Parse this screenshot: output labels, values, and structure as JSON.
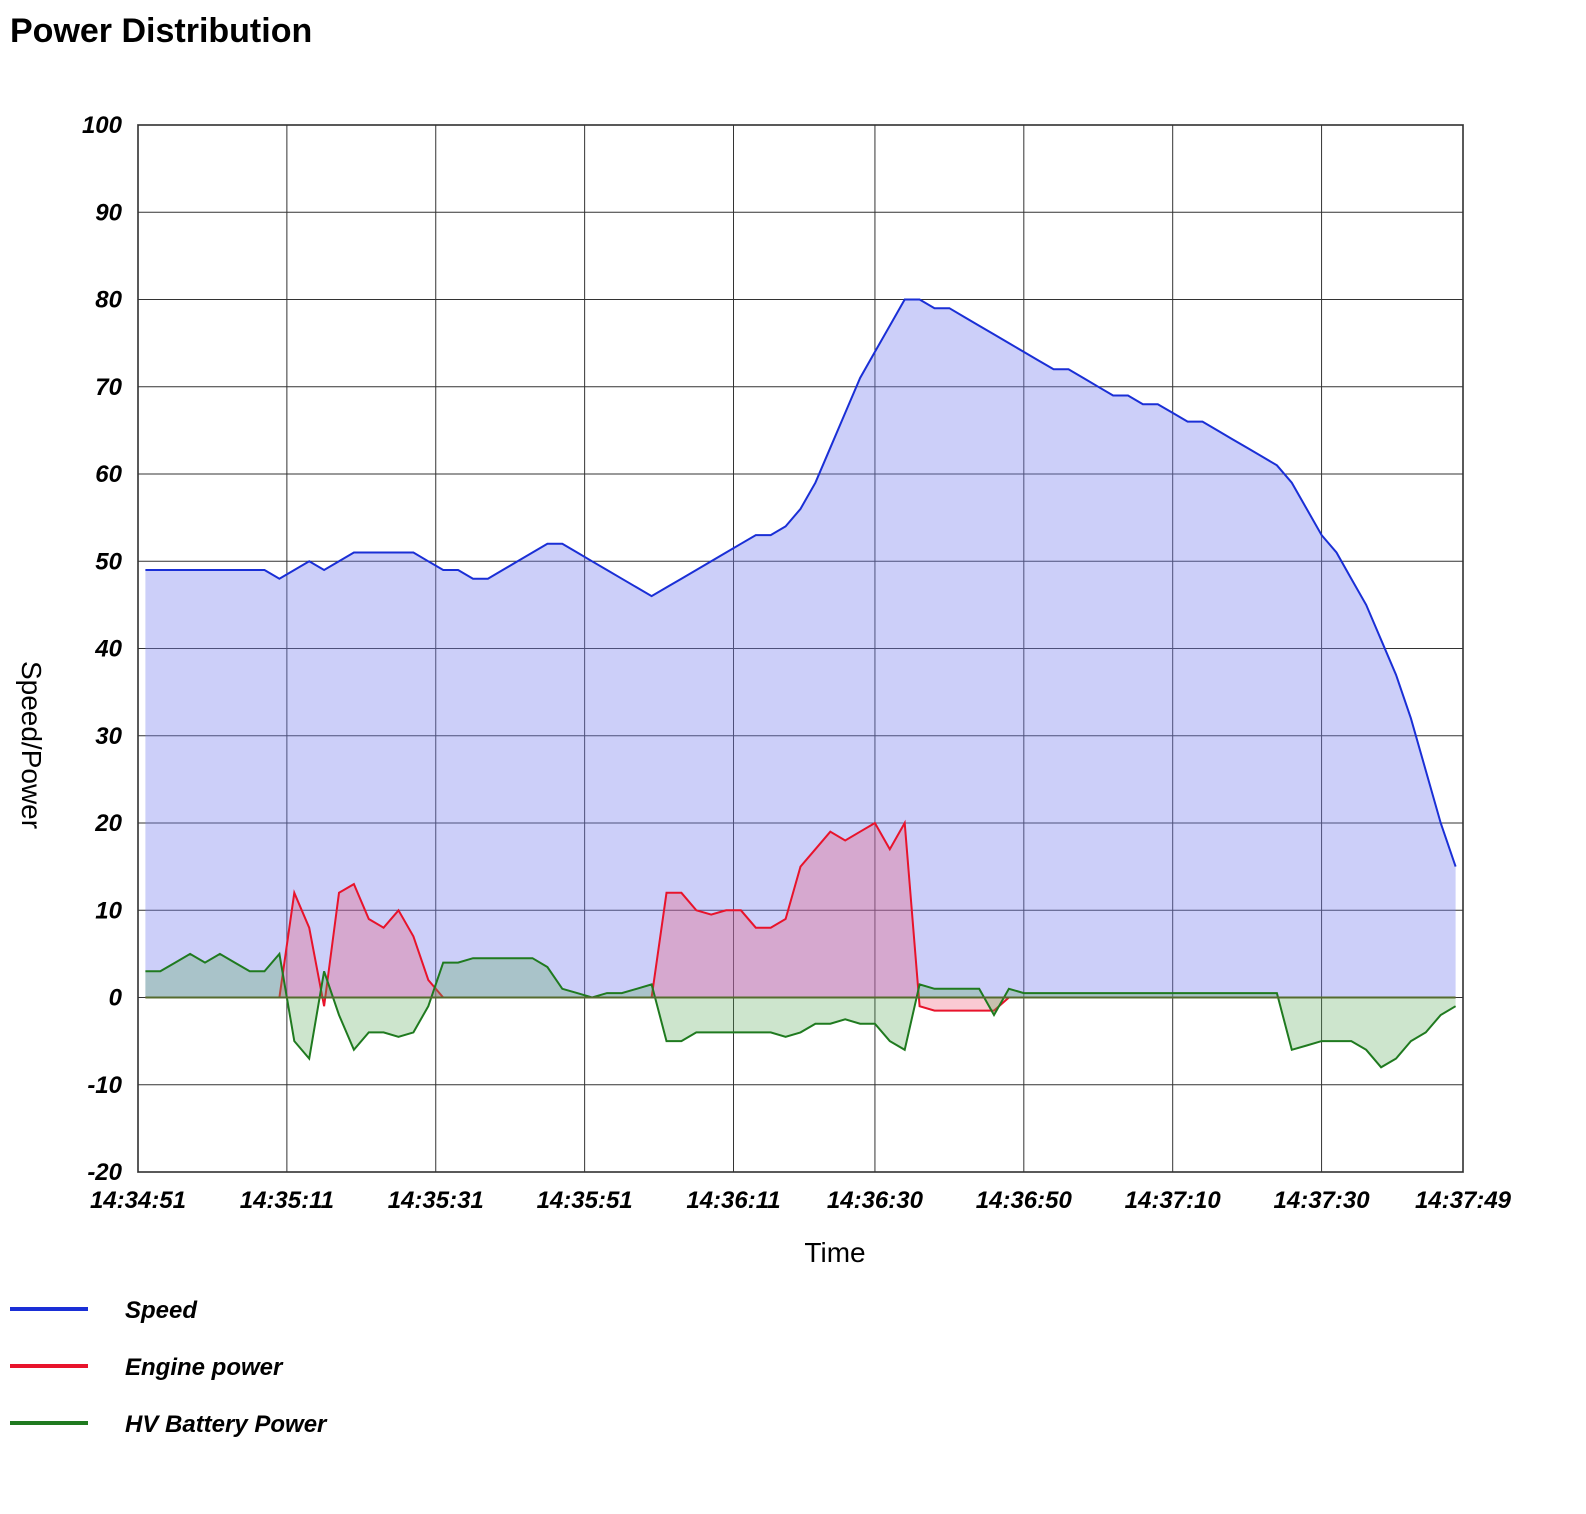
{
  "chart_data": {
    "type": "area-line",
    "title": "Power Distribution",
    "xlabel": "Time",
    "ylabel": "Speed/Power",
    "x": [
      "14:34:52",
      "14:34:54",
      "14:34:56",
      "14:34:58",
      "14:35:00",
      "14:35:02",
      "14:35:04",
      "14:35:06",
      "14:35:08",
      "14:35:10",
      "14:35:12",
      "14:35:14",
      "14:35:16",
      "14:35:18",
      "14:35:20",
      "14:35:22",
      "14:35:24",
      "14:35:26",
      "14:35:28",
      "14:35:30",
      "14:35:32",
      "14:35:34",
      "14:35:36",
      "14:35:38",
      "14:35:40",
      "14:35:42",
      "14:35:44",
      "14:35:46",
      "14:35:48",
      "14:35:50",
      "14:35:52",
      "14:35:54",
      "14:35:56",
      "14:35:58",
      "14:36:00",
      "14:36:02",
      "14:36:04",
      "14:36:06",
      "14:36:08",
      "14:36:10",
      "14:36:12",
      "14:36:14",
      "14:36:16",
      "14:36:18",
      "14:36:20",
      "14:36:22",
      "14:36:24",
      "14:36:26",
      "14:36:28",
      "14:36:30",
      "14:36:32",
      "14:36:34",
      "14:36:36",
      "14:36:38",
      "14:36:40",
      "14:36:42",
      "14:36:44",
      "14:36:46",
      "14:36:48",
      "14:36:50",
      "14:36:52",
      "14:36:54",
      "14:36:56",
      "14:36:58",
      "14:37:00",
      "14:37:02",
      "14:37:04",
      "14:37:06",
      "14:37:08",
      "14:37:10",
      "14:37:12",
      "14:37:14",
      "14:37:16",
      "14:37:18",
      "14:37:20",
      "14:37:22",
      "14:37:24",
      "14:37:26",
      "14:37:28",
      "14:37:30",
      "14:37:32",
      "14:37:34",
      "14:37:36",
      "14:37:38",
      "14:37:40",
      "14:37:42",
      "14:37:44",
      "14:37:46",
      "14:37:48"
    ],
    "series": [
      {
        "name": "Speed",
        "color": "#1a2fd6",
        "fill": "rgba(120,130,240,0.38)",
        "values": [
          49,
          49,
          49,
          49,
          49,
          49,
          49,
          49,
          49,
          48,
          49,
          50,
          49,
          50,
          51,
          51,
          51,
          51,
          51,
          50,
          49,
          49,
          48,
          48,
          49,
          50,
          51,
          52,
          52,
          51,
          50,
          49,
          48,
          47,
          46,
          47,
          48,
          49,
          50,
          51,
          52,
          53,
          53,
          54,
          56,
          59,
          63,
          67,
          71,
          74,
          77,
          80,
          80,
          79,
          79,
          78,
          77,
          76,
          75,
          74,
          73,
          72,
          72,
          71,
          70,
          69,
          69,
          68,
          68,
          67,
          66,
          66,
          65,
          64,
          63,
          62,
          61,
          59,
          56,
          53,
          51,
          48,
          45,
          41,
          37,
          32,
          26,
          20,
          15
        ]
      },
      {
        "name": "Engine power",
        "color": "#e8132b",
        "fill": "rgba(240,80,110,0.3)",
        "values": [
          0,
          0,
          0,
          0,
          0,
          0,
          0,
          0,
          0,
          0,
          12,
          8,
          -1,
          12,
          13,
          9,
          8,
          10,
          7,
          2,
          0,
          0,
          0,
          0,
          0,
          0,
          0,
          0,
          0,
          0,
          0,
          0,
          0,
          0,
          0,
          12,
          12,
          10,
          9.5,
          10,
          10,
          8,
          8,
          9,
          15,
          17,
          19,
          18,
          19,
          20,
          17,
          20,
          -1,
          -1.5,
          -1.5,
          -1.5,
          -1.5,
          -1.5,
          0,
          0,
          0,
          0,
          0,
          0,
          0,
          0,
          0,
          0,
          0,
          0,
          0,
          0,
          0,
          0,
          0,
          0,
          0,
          0,
          0,
          0,
          0,
          0,
          0,
          0,
          0,
          0,
          0,
          0,
          0
        ]
      },
      {
        "name": "HV Battery Power",
        "color": "#1f7a1f",
        "fill": "rgba(90,170,90,0.3)",
        "values": [
          3,
          3,
          4,
          5,
          4,
          5,
          4,
          3,
          3,
          5,
          -5,
          -7,
          3,
          -2,
          -6,
          -4,
          -4,
          -4.5,
          -4,
          -1,
          4,
          4,
          4.5,
          4.5,
          4.5,
          4.5,
          4.5,
          3.5,
          1,
          0.5,
          0,
          0.5,
          0.5,
          1,
          1.5,
          -5,
          -5,
          -4,
          -4,
          -4,
          -4,
          -4,
          -4,
          -4.5,
          -4,
          -3,
          -3,
          -2.5,
          -3,
          -3,
          -5,
          -6,
          1.5,
          1,
          1,
          1,
          1,
          -2,
          1,
          0.5,
          0.5,
          0.5,
          0.5,
          0.5,
          0.5,
          0.5,
          0.5,
          0.5,
          0.5,
          0.5,
          0.5,
          0.5,
          0.5,
          0.5,
          0.5,
          0.5,
          0.5,
          -6,
          -5.5,
          -5,
          -5,
          -5,
          -6,
          -8,
          -7,
          -5,
          -4,
          -2,
          -1
        ]
      }
    ],
    "xlim": [
      "14:34:51",
      "14:37:49"
    ],
    "xticks": [
      "14:34:51",
      "14:35:11",
      "14:35:31",
      "14:35:51",
      "14:36:11",
      "14:36:30",
      "14:36:50",
      "14:37:10",
      "14:37:30",
      "14:37:49"
    ],
    "ylim": [
      -20,
      100
    ],
    "yticks": [
      -20,
      -10,
      0,
      10,
      20,
      30,
      40,
      50,
      60,
      70,
      80,
      90,
      100
    ],
    "grid": true
  }
}
